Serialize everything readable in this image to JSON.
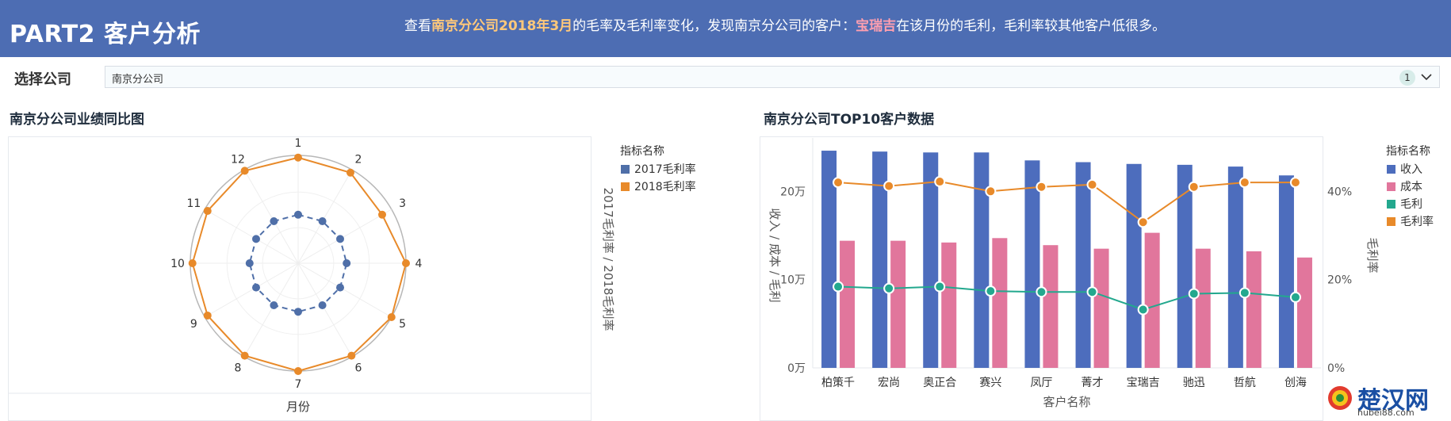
{
  "header": {
    "title": "PART2 客户分析",
    "desc": {
      "p1": "查看",
      "h1": "南京分公司2018年3月",
      "p2": "的毛率及毛利率变化，发现南京分公司的客户：",
      "h2": "宝瑞吉",
      "p3": "在该月份的毛利，毛利率较其他客户低很多。"
    }
  },
  "filter": {
    "label": "选择公司",
    "value": "南京分公司",
    "count": "1"
  },
  "left_panel": {
    "title": "南京分公司业绩同比图"
  },
  "right_panel": {
    "title": "南京分公司TOP10客户数据"
  },
  "watermark": {
    "text": "楚汉网",
    "sub": "hubei88.com"
  },
  "chart_data": [
    {
      "type": "radar",
      "xlabel": "月份",
      "ylabel": "2017毛利率 / 2018毛利率",
      "legend_title": "指标名称",
      "legend_position": "top-right",
      "categories": [
        "1",
        "2",
        "3",
        "4",
        "5",
        "6",
        "7",
        "8",
        "9",
        "10",
        "11",
        "12"
      ],
      "range": [
        0,
        1
      ],
      "series": [
        {
          "name": "2017毛利率",
          "color": "#4f6fa8",
          "values": [
            0.45,
            0.45,
            0.45,
            0.45,
            0.45,
            0.45,
            0.45,
            0.45,
            0.45,
            0.45,
            0.45,
            0.45
          ]
        },
        {
          "name": "2018毛利率",
          "color": "#e88a2a",
          "values": [
            0.98,
            0.97,
            0.9,
            1.0,
            1.0,
            0.99,
            1.0,
            0.99,
            0.97,
            0.98,
            0.97,
            0.99
          ]
        }
      ]
    },
    {
      "type": "bar",
      "xlabel": "客户名称",
      "ylabel": "收入 / 成本 / 毛利",
      "y2label": "毛利率",
      "legend_title": "指标名称",
      "legend_position": "top-right",
      "categories": [
        "柏策千",
        "宏尚",
        "奥正合",
        "赛兴",
        "凤厅",
        "菁才",
        "宝瑞吉",
        "驰迅",
        "哲航",
        "创海"
      ],
      "ylim": [
        0,
        250000
      ],
      "yticks": [
        "0万",
        "10万",
        "20万"
      ],
      "y2lim": [
        0,
        0.5
      ],
      "y2ticks": [
        "0%",
        "20%",
        "40%"
      ],
      "series": [
        {
          "name": "收入",
          "kind": "bar",
          "axis": "left",
          "color": "#4d6dbd",
          "values": [
            246000,
            245000,
            244000,
            244000,
            235000,
            233000,
            231000,
            230000,
            228000,
            218000
          ]
        },
        {
          "name": "成本",
          "kind": "bar",
          "axis": "left",
          "color": "#e1769c",
          "values": [
            144000,
            144000,
            142000,
            147000,
            139000,
            135000,
            153000,
            135000,
            132000,
            125000
          ]
        },
        {
          "name": "毛利",
          "kind": "line",
          "axis": "left",
          "color": "#23a88e",
          "values": [
            92000,
            90000,
            92000,
            87000,
            86000,
            86000,
            66000,
            84000,
            85000,
            80000
          ]
        },
        {
          "name": "毛利率",
          "kind": "line",
          "axis": "right",
          "color": "#e88a2a",
          "values": [
            0.42,
            0.412,
            0.422,
            0.4,
            0.41,
            0.415,
            0.33,
            0.41,
            0.42,
            0.42
          ]
        }
      ]
    }
  ]
}
